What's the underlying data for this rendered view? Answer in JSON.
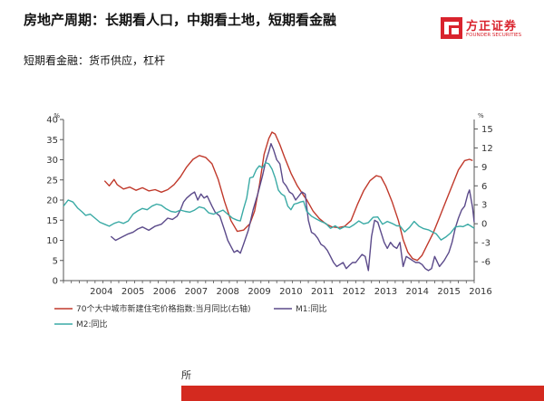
{
  "header": {
    "title": "房地产周期：长期看人口，中期看土地，短期看金融",
    "subtitle": "短期看金融：货币供应，杠杆"
  },
  "logo": {
    "name_cn": "方正证券",
    "name_en": "FOUNDER SECURITIES",
    "brand_color": "#d9232d"
  },
  "footer": {
    "source_text": "所",
    "bar_color": "#d42a1f"
  },
  "chart_data": {
    "type": "line",
    "x_tick_labels": [
      "2004",
      "2005",
      "2006",
      "2007",
      "2008",
      "2009",
      "2010",
      "2011",
      "2012",
      "2013",
      "2014",
      "2015",
      "2016"
    ],
    "x_range": [
      2003.3,
      2016.3
    ],
    "y_left": {
      "unit": "%",
      "range": [
        0,
        40
      ],
      "ticks": [
        0,
        5,
        10,
        15,
        20,
        25,
        30,
        35,
        40
      ]
    },
    "y_right": {
      "unit": "%",
      "range": [
        -9,
        16.5
      ],
      "ticks": [
        -6,
        -3,
        0,
        3,
        6,
        9,
        12,
        15
      ]
    },
    "grid": false,
    "legend_position": "bottom",
    "series": [
      {
        "name": "70个大中城市新建住宅价格指数:当月同比(右轴)",
        "axis": "right",
        "color": "#c0392b",
        "points": [
          [
            2004.6,
            6.8
          ],
          [
            2004.75,
            6.0
          ],
          [
            2004.9,
            7.0
          ],
          [
            2005.0,
            6.2
          ],
          [
            2005.2,
            5.5
          ],
          [
            2005.4,
            5.8
          ],
          [
            2005.6,
            5.3
          ],
          [
            2005.8,
            5.7
          ],
          [
            2006.0,
            5.2
          ],
          [
            2006.2,
            5.4
          ],
          [
            2006.4,
            5.0
          ],
          [
            2006.6,
            5.4
          ],
          [
            2006.8,
            6.2
          ],
          [
            2007.0,
            7.4
          ],
          [
            2007.2,
            9.0
          ],
          [
            2007.4,
            10.2
          ],
          [
            2007.6,
            10.8
          ],
          [
            2007.8,
            10.5
          ],
          [
            2008.0,
            9.5
          ],
          [
            2008.2,
            7.0
          ],
          [
            2008.4,
            3.5
          ],
          [
            2008.6,
            0.5
          ],
          [
            2008.8,
            -1.2
          ],
          [
            2009.0,
            -1.0
          ],
          [
            2009.2,
            0.0
          ],
          [
            2009.35,
            2.0
          ],
          [
            2009.5,
            6.0
          ],
          [
            2009.65,
            11.0
          ],
          [
            2009.8,
            13.5
          ],
          [
            2009.9,
            14.5
          ],
          [
            2010.0,
            14.2
          ],
          [
            2010.15,
            12.5
          ],
          [
            2010.3,
            10.5
          ],
          [
            2010.5,
            8.0
          ],
          [
            2010.7,
            6.0
          ],
          [
            2010.9,
            4.5
          ],
          [
            2011.0,
            3.8
          ],
          [
            2011.2,
            2.0
          ],
          [
            2011.4,
            0.8
          ],
          [
            2011.6,
            0.0
          ],
          [
            2011.8,
            -0.5
          ],
          [
            2012.0,
            -0.6
          ],
          [
            2012.2,
            -0.4
          ],
          [
            2012.4,
            0.5
          ],
          [
            2012.6,
            3.0
          ],
          [
            2012.8,
            5.2
          ],
          [
            2013.0,
            6.8
          ],
          [
            2013.2,
            7.6
          ],
          [
            2013.35,
            7.4
          ],
          [
            2013.5,
            6.0
          ],
          [
            2013.7,
            3.5
          ],
          [
            2013.9,
            0.5
          ],
          [
            2014.05,
            -2.5
          ],
          [
            2014.2,
            -4.5
          ],
          [
            2014.35,
            -5.5
          ],
          [
            2014.5,
            -5.8
          ],
          [
            2014.65,
            -5.0
          ],
          [
            2014.8,
            -3.5
          ],
          [
            2015.0,
            -1.5
          ],
          [
            2015.2,
            1.0
          ],
          [
            2015.4,
            3.5
          ],
          [
            2015.6,
            6.0
          ],
          [
            2015.8,
            8.5
          ],
          [
            2016.0,
            10.0
          ],
          [
            2016.15,
            10.2
          ],
          [
            2016.25,
            10.0
          ]
        ]
      },
      {
        "name": "M1:同比",
        "axis": "left",
        "color": "#5b4a8a",
        "points": [
          [
            2004.8,
            11.0
          ],
          [
            2004.95,
            10.0
          ],
          [
            2005.15,
            10.8
          ],
          [
            2005.35,
            11.6
          ],
          [
            2005.5,
            12.0
          ],
          [
            2005.65,
            12.8
          ],
          [
            2005.8,
            13.3
          ],
          [
            2006.0,
            12.5
          ],
          [
            2006.2,
            13.5
          ],
          [
            2006.4,
            14.0
          ],
          [
            2006.6,
            15.5
          ],
          [
            2006.75,
            15.2
          ],
          [
            2006.9,
            16.0
          ],
          [
            2007.0,
            17.5
          ],
          [
            2007.1,
            19.5
          ],
          [
            2007.2,
            20.5
          ],
          [
            2007.35,
            21.5
          ],
          [
            2007.45,
            22.0
          ],
          [
            2007.55,
            20.0
          ],
          [
            2007.65,
            21.5
          ],
          [
            2007.75,
            20.5
          ],
          [
            2007.85,
            21.0
          ],
          [
            2008.0,
            18.5
          ],
          [
            2008.1,
            17.0
          ],
          [
            2008.25,
            16.0
          ],
          [
            2008.4,
            12.5
          ],
          [
            2008.5,
            10.0
          ],
          [
            2008.6,
            8.5
          ],
          [
            2008.7,
            7.0
          ],
          [
            2008.8,
            7.5
          ],
          [
            2008.9,
            6.8
          ],
          [
            2009.0,
            9.0
          ],
          [
            2009.15,
            12.5
          ],
          [
            2009.3,
            17.5
          ],
          [
            2009.45,
            21.5
          ],
          [
            2009.6,
            26.0
          ],
          [
            2009.7,
            29.5
          ],
          [
            2009.8,
            32.0
          ],
          [
            2009.87,
            34.0
          ],
          [
            2009.95,
            32.5
          ],
          [
            2010.05,
            30.0
          ],
          [
            2010.15,
            29.0
          ],
          [
            2010.25,
            24.5
          ],
          [
            2010.35,
            23.5
          ],
          [
            2010.45,
            22.0
          ],
          [
            2010.55,
            21.5
          ],
          [
            2010.65,
            20.0
          ],
          [
            2010.75,
            21.0
          ],
          [
            2010.85,
            22.0
          ],
          [
            2010.95,
            21.5
          ],
          [
            2011.05,
            15.0
          ],
          [
            2011.15,
            12.0
          ],
          [
            2011.25,
            11.5
          ],
          [
            2011.35,
            10.5
          ],
          [
            2011.45,
            9.0
          ],
          [
            2011.55,
            8.5
          ],
          [
            2011.65,
            7.5
          ],
          [
            2011.75,
            6.0
          ],
          [
            2011.85,
            4.5
          ],
          [
            2011.95,
            3.5
          ],
          [
            2012.05,
            4.0
          ],
          [
            2012.15,
            4.5
          ],
          [
            2012.25,
            3.0
          ],
          [
            2012.35,
            3.8
          ],
          [
            2012.45,
            4.5
          ],
          [
            2012.55,
            4.5
          ],
          [
            2012.65,
            5.5
          ],
          [
            2012.75,
            6.5
          ],
          [
            2012.85,
            6.0
          ],
          [
            2012.95,
            2.5
          ],
          [
            2013.05,
            11.0
          ],
          [
            2013.15,
            15.0
          ],
          [
            2013.25,
            14.5
          ],
          [
            2013.35,
            12.0
          ],
          [
            2013.45,
            9.5
          ],
          [
            2013.55,
            8.0
          ],
          [
            2013.65,
            9.5
          ],
          [
            2013.75,
            8.5
          ],
          [
            2013.85,
            8.0
          ],
          [
            2013.95,
            9.5
          ],
          [
            2014.05,
            3.5
          ],
          [
            2014.15,
            6.0
          ],
          [
            2014.25,
            5.5
          ],
          [
            2014.35,
            5.0
          ],
          [
            2014.45,
            4.5
          ],
          [
            2014.55,
            4.5
          ],
          [
            2014.65,
            4.0
          ],
          [
            2014.75,
            3.0
          ],
          [
            2014.85,
            2.5
          ],
          [
            2014.95,
            3.0
          ],
          [
            2015.05,
            6.0
          ],
          [
            2015.2,
            3.5
          ],
          [
            2015.35,
            5.0
          ],
          [
            2015.5,
            7.0
          ],
          [
            2015.6,
            9.5
          ],
          [
            2015.7,
            13.0
          ],
          [
            2015.8,
            15.5
          ],
          [
            2015.9,
            17.5
          ],
          [
            2016.0,
            18.5
          ],
          [
            2016.1,
            21.5
          ],
          [
            2016.15,
            22.5
          ],
          [
            2016.25,
            18.0
          ],
          [
            2016.3,
            14.5
          ]
        ]
      },
      {
        "name": "M2:同比",
        "axis": "left",
        "color": "#3aaaa5",
        "points": [
          [
            2003.3,
            18.5
          ],
          [
            2003.45,
            20.0
          ],
          [
            2003.6,
            19.5
          ],
          [
            2003.75,
            18.0
          ],
          [
            2003.9,
            17.0
          ],
          [
            2004.0,
            16.2
          ],
          [
            2004.15,
            16.5
          ],
          [
            2004.3,
            15.5
          ],
          [
            2004.45,
            14.5
          ],
          [
            2004.6,
            14.0
          ],
          [
            2004.75,
            13.5
          ],
          [
            2004.9,
            14.2
          ],
          [
            2005.05,
            14.6
          ],
          [
            2005.2,
            14.2
          ],
          [
            2005.35,
            14.8
          ],
          [
            2005.5,
            16.5
          ],
          [
            2005.65,
            17.3
          ],
          [
            2005.8,
            17.9
          ],
          [
            2005.95,
            17.6
          ],
          [
            2006.1,
            18.5
          ],
          [
            2006.25,
            19.0
          ],
          [
            2006.4,
            18.7
          ],
          [
            2006.55,
            17.8
          ],
          [
            2006.7,
            17.2
          ],
          [
            2006.85,
            17.0
          ],
          [
            2007.0,
            17.5
          ],
          [
            2007.15,
            17.2
          ],
          [
            2007.3,
            17.0
          ],
          [
            2007.45,
            17.5
          ],
          [
            2007.6,
            18.3
          ],
          [
            2007.75,
            18.0
          ],
          [
            2007.9,
            16.8
          ],
          [
            2008.05,
            16.5
          ],
          [
            2008.2,
            17.0
          ],
          [
            2008.35,
            17.5
          ],
          [
            2008.5,
            16.5
          ],
          [
            2008.65,
            15.5
          ],
          [
            2008.8,
            15.0
          ],
          [
            2008.9,
            14.8
          ],
          [
            2009.0,
            17.8
          ],
          [
            2009.1,
            20.5
          ],
          [
            2009.2,
            25.5
          ],
          [
            2009.3,
            25.7
          ],
          [
            2009.4,
            27.5
          ],
          [
            2009.5,
            28.5
          ],
          [
            2009.6,
            28.0
          ],
          [
            2009.7,
            29.3
          ],
          [
            2009.8,
            29.0
          ],
          [
            2009.9,
            27.7
          ],
          [
            2010.0,
            25.5
          ],
          [
            2010.1,
            22.5
          ],
          [
            2010.2,
            21.5
          ],
          [
            2010.3,
            21.0
          ],
          [
            2010.4,
            18.5
          ],
          [
            2010.5,
            17.6
          ],
          [
            2010.6,
            19.0
          ],
          [
            2010.7,
            19.2
          ],
          [
            2010.8,
            19.5
          ],
          [
            2010.9,
            19.7
          ],
          [
            2011.0,
            17.2
          ],
          [
            2011.15,
            16.0
          ],
          [
            2011.3,
            15.3
          ],
          [
            2011.45,
            14.7
          ],
          [
            2011.6,
            14.2
          ],
          [
            2011.75,
            13.0
          ],
          [
            2011.9,
            13.6
          ],
          [
            2012.05,
            12.8
          ],
          [
            2012.2,
            13.4
          ],
          [
            2012.35,
            13.2
          ],
          [
            2012.5,
            13.9
          ],
          [
            2012.65,
            14.8
          ],
          [
            2012.8,
            14.1
          ],
          [
            2012.95,
            14.4
          ],
          [
            2013.1,
            15.7
          ],
          [
            2013.25,
            15.8
          ],
          [
            2013.4,
            14.0
          ],
          [
            2013.55,
            14.7
          ],
          [
            2013.7,
            14.2
          ],
          [
            2013.85,
            13.6
          ],
          [
            2013.95,
            13.6
          ],
          [
            2014.1,
            12.1
          ],
          [
            2014.25,
            13.2
          ],
          [
            2014.4,
            14.7
          ],
          [
            2014.55,
            13.5
          ],
          [
            2014.7,
            12.9
          ],
          [
            2014.85,
            12.6
          ],
          [
            2014.95,
            12.2
          ],
          [
            2015.1,
            11.6
          ],
          [
            2015.25,
            10.1
          ],
          [
            2015.4,
            10.8
          ],
          [
            2015.55,
            11.8
          ],
          [
            2015.7,
            13.3
          ],
          [
            2015.85,
            13.5
          ],
          [
            2015.95,
            13.4
          ],
          [
            2016.1,
            14.0
          ],
          [
            2016.2,
            13.5
          ],
          [
            2016.3,
            13.0
          ]
        ]
      }
    ]
  }
}
